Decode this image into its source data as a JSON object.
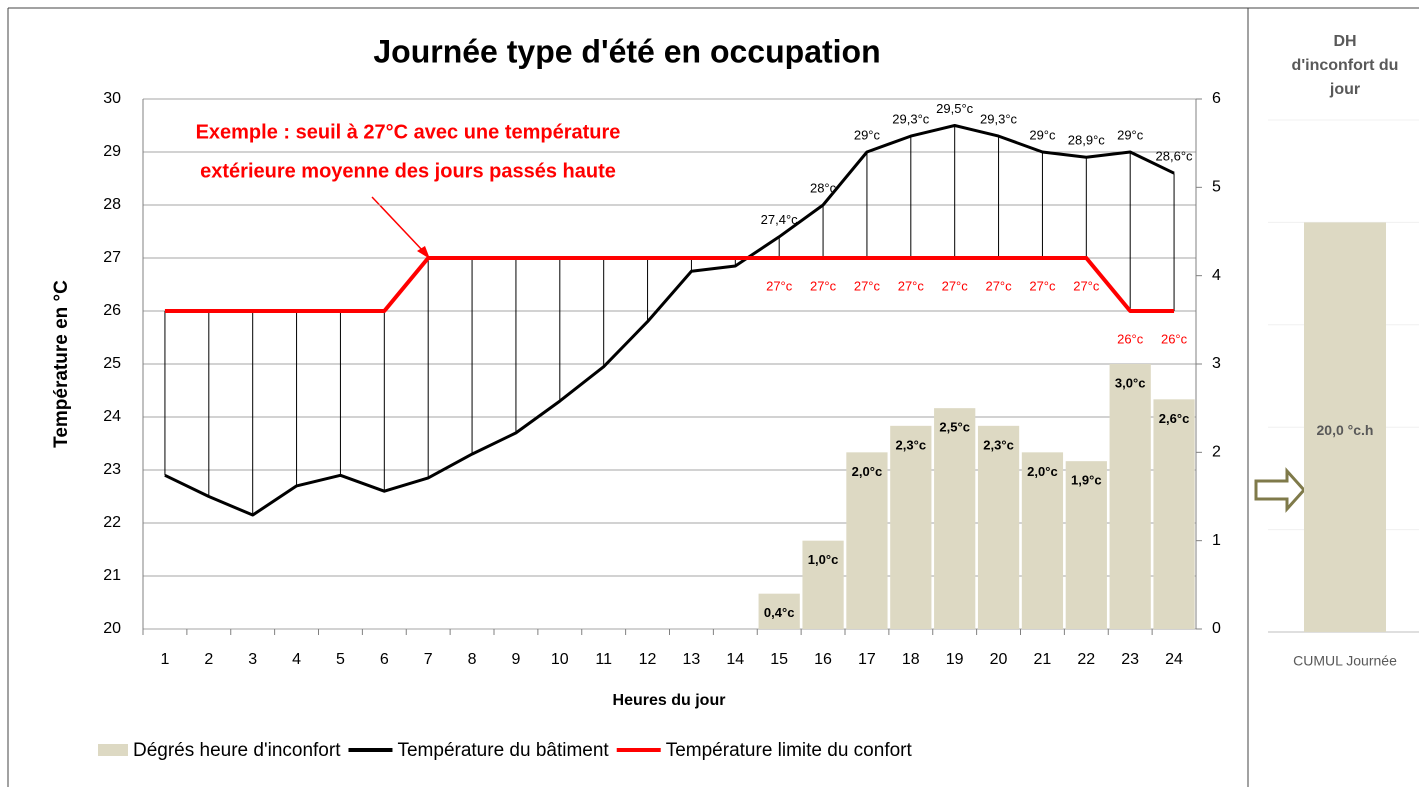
{
  "chart_data": [
    {
      "type": "combo",
      "title": "Journée type d'été en occupation",
      "y_label": "Température en °C",
      "x_label": "Heures du jour",
      "annotation": [
        "Exemple : seuil à 27°C avec une température",
        "extérieure moyenne des jours passés haute"
      ],
      "categories": [
        "1",
        "2",
        "3",
        "4",
        "5",
        "6",
        "7",
        "8",
        "9",
        "10",
        "11",
        "12",
        "13",
        "14",
        "15",
        "16",
        "17",
        "18",
        "19",
        "20",
        "21",
        "22",
        "23",
        "24"
      ],
      "series": [
        {
          "name": "Dégrés heure d'inconfort",
          "type": "bar",
          "axis": "y2",
          "color": "#ddd9c3",
          "values": [
            null,
            null,
            null,
            null,
            null,
            null,
            null,
            null,
            null,
            null,
            null,
            null,
            null,
            null,
            0.4,
            1.0,
            2.0,
            2.3,
            2.5,
            2.3,
            2.0,
            1.9,
            3.0,
            2.6
          ],
          "value_labels": [
            null,
            null,
            null,
            null,
            null,
            null,
            null,
            null,
            null,
            null,
            null,
            null,
            null,
            null,
            "0,4°c",
            "1,0°c",
            "2,0°c",
            "2,3°c",
            "2,5°c",
            "2,3°c",
            "2,0°c",
            "1,9°c",
            "3,0°c",
            "2,6°c"
          ]
        },
        {
          "name": "Température du bâtiment",
          "type": "line",
          "color": "#000000",
          "values": [
            22.9,
            22.5,
            22.15,
            22.7,
            22.9,
            22.6,
            22.85,
            23.3,
            23.7,
            24.3,
            24.95,
            25.8,
            26.75,
            26.85,
            27.4,
            28,
            29,
            29.3,
            29.5,
            29.3,
            29,
            28.9,
            29,
            28.6
          ],
          "value_labels": [
            null,
            null,
            null,
            null,
            null,
            null,
            null,
            null,
            null,
            null,
            null,
            null,
            null,
            null,
            "27,4°c",
            "28°c",
            "29°c",
            "29,3°c",
            "29,5°c",
            "29,3°c",
            "29°c",
            "28,9°c",
            "29°c",
            "28,6°c"
          ]
        },
        {
          "name": "Température limite du confort",
          "type": "line",
          "color": "#ff0000",
          "values": [
            26,
            26,
            26,
            26,
            26,
            26,
            27,
            27,
            27,
            27,
            27,
            27,
            27,
            27,
            27,
            27,
            27,
            27,
            27,
            27,
            27,
            27,
            26,
            26
          ],
          "value_labels": [
            null,
            null,
            null,
            null,
            null,
            null,
            null,
            null,
            null,
            null,
            null,
            null,
            null,
            null,
            "27°c",
            "27°c",
            "27°c",
            "27°c",
            "27°c",
            "27°c",
            "27°c",
            "27°c",
            "26°c",
            "26°c"
          ]
        }
      ],
      "ylim": [
        20,
        30
      ],
      "yticks": [
        20,
        21,
        22,
        23,
        24,
        25,
        26,
        27,
        28,
        29,
        30
      ],
      "y2lim": [
        0,
        6
      ],
      "y2ticks": [
        0,
        1,
        2,
        3,
        4,
        5,
        6
      ],
      "grid": true,
      "legend": "bottom"
    },
    {
      "type": "bar",
      "title": "DH d'inconfort du jour",
      "categories": [
        "CUMUL Journée"
      ],
      "values": [
        20.0
      ],
      "value_labels": [
        "20,0 °c.h"
      ],
      "color": "#ddd9c3",
      "ylim": [
        0,
        25
      ],
      "yticks": [
        0,
        5,
        10,
        15,
        20,
        25
      ],
      "grid": true
    }
  ]
}
